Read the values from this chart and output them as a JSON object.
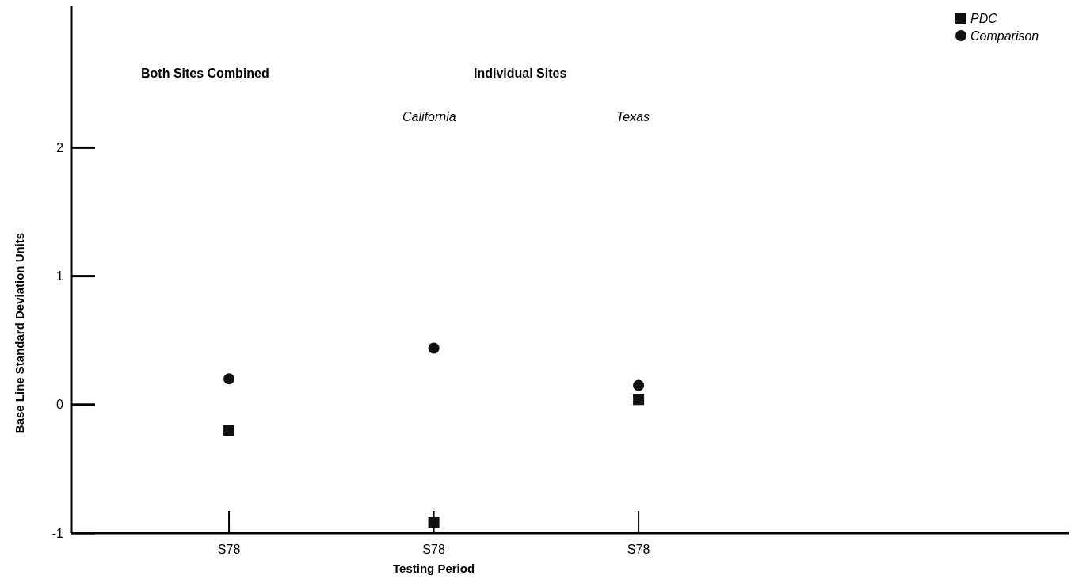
{
  "chart_data": {
    "type": "scatter",
    "xlabel": "Testing Period",
    "ylabel": "Base Line Standard Deviation Units",
    "categories": [
      "S78",
      "S78",
      "S78"
    ],
    "series": [
      {
        "name": "PDC",
        "color": "#111111",
        "marker": "square",
        "values": [
          -0.2,
          -0.92,
          0.04
        ]
      },
      {
        "name": "Comparison",
        "color": "#111111",
        "marker": "circle",
        "values": [
          0.2,
          0.44,
          0.15
        ]
      }
    ],
    "ylim": [
      -1,
      3.1
    ],
    "yticks": [
      -1,
      0,
      1,
      2
    ],
    "legend": "top right",
    "annotations": [
      "Both Sites Combined",
      "Individual Sites",
      "California",
      "Texas"
    ]
  }
}
